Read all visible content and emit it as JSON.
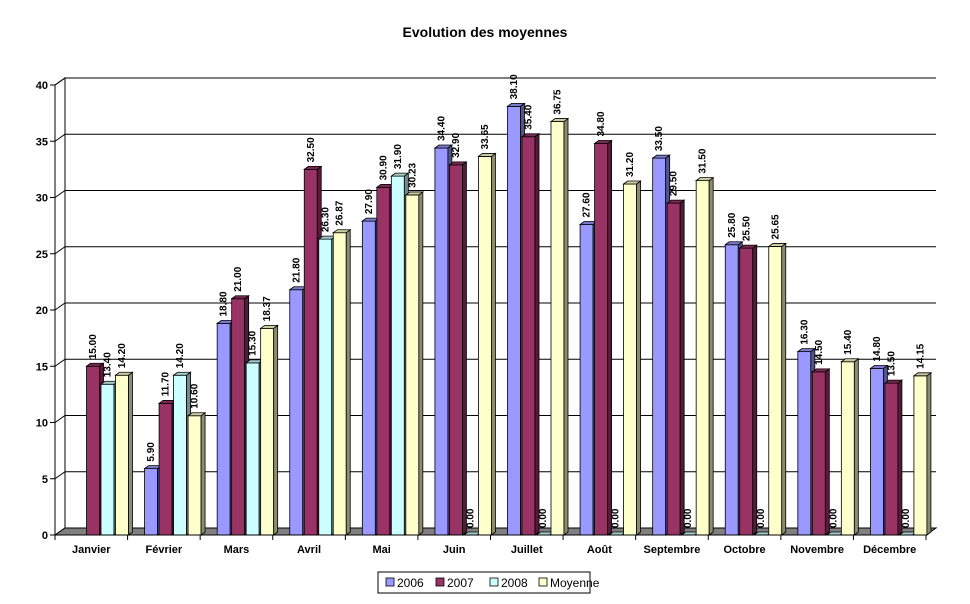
{
  "chart_data": {
    "type": "bar",
    "title": "Evolution des moyennes",
    "xlabel": "",
    "ylabel": "",
    "ylim": [
      0,
      40
    ],
    "yticks": [
      0,
      5,
      10,
      15,
      20,
      25,
      30,
      35,
      40
    ],
    "grid": true,
    "legend_position": "bottom",
    "categories": [
      "Janvier",
      "Février",
      "Mars",
      "Avril",
      "Mai",
      "Juin",
      "Juillet",
      "Août",
      "Septembre",
      "Octobre",
      "Novembre",
      "Décembre"
    ],
    "series": [
      {
        "name": "2006",
        "color": "#9999ff",
        "values": [
          null,
          5.9,
          18.8,
          21.8,
          27.9,
          34.4,
          38.1,
          27.6,
          33.5,
          25.8,
          16.3,
          14.8
        ],
        "labels": [
          "",
          "5.90",
          "18.80",
          "21.80",
          "27.90",
          "34.40",
          "38.10",
          "27.60",
          "33.50",
          "25.80",
          "16.30",
          "14.80"
        ]
      },
      {
        "name": "2007",
        "color": "#993366",
        "values": [
          15.0,
          11.7,
          21.0,
          32.5,
          30.9,
          32.9,
          35.4,
          34.8,
          29.5,
          25.5,
          14.5,
          13.5
        ],
        "labels": [
          "15.00",
          "11.70",
          "21.00",
          "32.50",
          "30.90",
          "32.90",
          "35.40",
          "34.80",
          "29.50",
          "25.50",
          "14.50",
          "13.50"
        ]
      },
      {
        "name": "2008",
        "color": "#ccffff",
        "values": [
          13.4,
          14.2,
          15.3,
          26.3,
          31.9,
          0,
          0,
          0,
          0,
          0,
          0,
          0
        ],
        "labels": [
          "13.40",
          "14.20",
          "15.30",
          "26.30",
          "31.90",
          "0.00",
          "0.00",
          "0.00",
          "0.00",
          "0.00",
          "0.00",
          "0.00"
        ]
      },
      {
        "name": "Moyenne",
        "color": "#ffffcc",
        "values": [
          14.2,
          10.6,
          18.37,
          26.87,
          30.23,
          33.65,
          36.75,
          31.2,
          31.5,
          25.65,
          15.4,
          14.15
        ],
        "labels": [
          "14.20",
          "10.60",
          "18.37",
          "26.87",
          "30.23",
          "33.65",
          "36.75",
          "31.20",
          "31.50",
          "25.65",
          "15.40",
          "14.15"
        ]
      }
    ]
  }
}
